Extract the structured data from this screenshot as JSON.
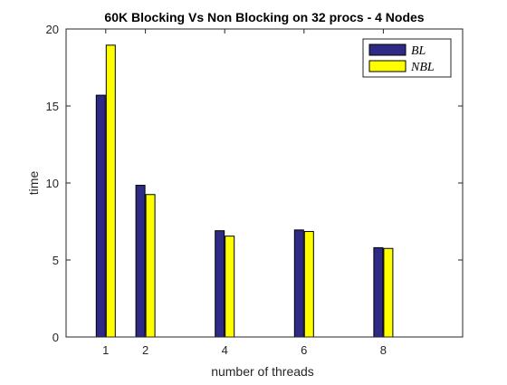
{
  "chart_data": {
    "type": "bar",
    "title": "60K Blocking Vs Non Blocking on 32 procs - 4 Nodes",
    "xlabel": "number of threads",
    "ylabel": "time",
    "xlim": [
      0,
      10
    ],
    "ylim": [
      0,
      20
    ],
    "x_ticks": [
      1,
      2,
      4,
      6,
      8
    ],
    "y_ticks": [
      0,
      5,
      10,
      15,
      20
    ],
    "x": [
      1,
      2,
      4,
      6,
      8
    ],
    "series": [
      {
        "name": "BL",
        "color": "#2e2a85",
        "values": [
          15.7,
          9.85,
          6.9,
          6.95,
          5.8
        ]
      },
      {
        "name": "NBL",
        "color": "#ffff00",
        "values": [
          18.95,
          9.25,
          6.55,
          6.85,
          5.75
        ]
      }
    ],
    "legend": {
      "placement": "top-right"
    },
    "grid": false
  }
}
